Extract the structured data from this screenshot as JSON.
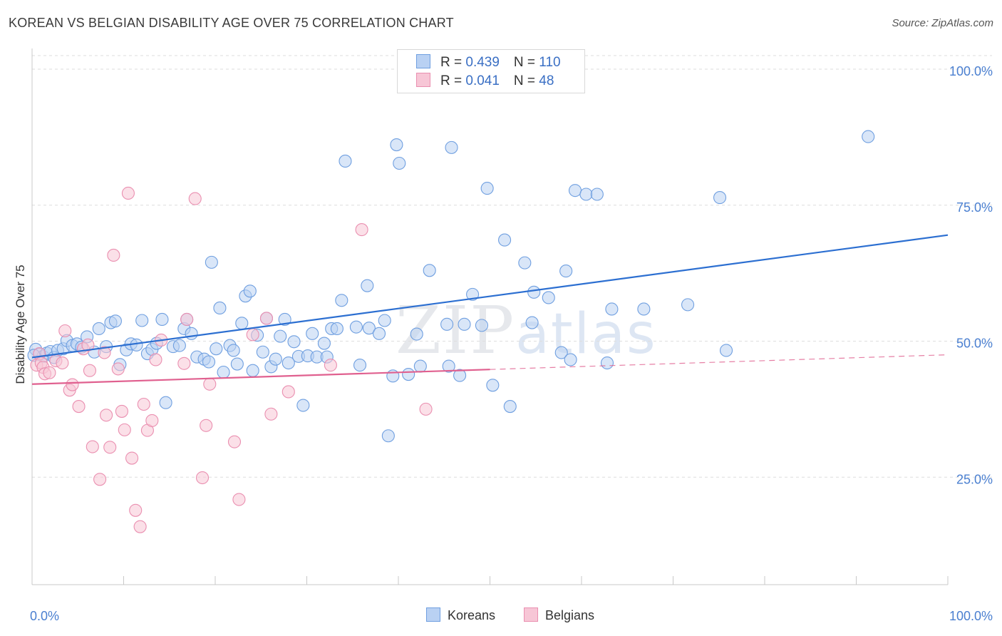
{
  "title": "KOREAN VS BELGIAN DISABILITY AGE OVER 75 CORRELATION CHART",
  "source": "Source: ZipAtlas.com",
  "watermark": {
    "zip": "ZIP",
    "atlas": "atlas"
  },
  "colors": {
    "korean_fill": "#b9d1f3",
    "korean_stroke": "#6f9fe0",
    "korean_line": "#2c6fd1",
    "belgian_fill": "#f7c6d6",
    "belgian_stroke": "#ea8fb0",
    "belgian_line": "#e0608f",
    "tick_label": "#4a7fd0",
    "grid": "#dedede"
  },
  "legend": {
    "korean": {
      "r_label": "R = ",
      "r_value": "0.439",
      "n_label": "N = ",
      "n_value": "110"
    },
    "belgian": {
      "r_label": "R = ",
      "r_value": "0.041",
      "n_label": "N = ",
      "n_value": "48"
    }
  },
  "bottom_legend": {
    "korean": "Koreans",
    "belgian": "Belgians"
  },
  "chart_data": {
    "type": "scatter",
    "title": "KOREAN VS BELGIAN DISABILITY AGE OVER 75 CORRELATION CHART",
    "xlabel": "",
    "ylabel": "Disability Age Over 75",
    "xlim": [
      0,
      100
    ],
    "ylim": [
      0,
      100
    ],
    "x_tick_labels": {
      "left": "0.0%",
      "right": "100.0%"
    },
    "y_ticks": [
      {
        "value": 100,
        "label": "100.0%"
      },
      {
        "value": 75,
        "label": "75.0%"
      },
      {
        "value": 50,
        "label": "50.0%"
      },
      {
        "value": 25,
        "label": "25.0%"
      }
    ],
    "grid": true,
    "legend_position": "top-center",
    "series": [
      {
        "name": "Koreans",
        "r": 0.439,
        "n": 110,
        "trend": {
          "x": [
            0,
            100
          ],
          "y": [
            47.0,
            69.5
          ],
          "dashed_from": null
        },
        "points": [
          [
            0.4,
            48.5
          ],
          [
            0.8,
            47.6
          ],
          [
            1.2,
            47.2
          ],
          [
            1.6,
            47.8
          ],
          [
            2.0,
            48.1
          ],
          [
            2.4,
            47.0
          ],
          [
            2.8,
            48.3
          ],
          [
            3.4,
            48.6
          ],
          [
            3.8,
            50.1
          ],
          [
            4.4,
            49.2
          ],
          [
            4.9,
            49.5
          ],
          [
            5.4,
            48.9
          ],
          [
            6.0,
            50.8
          ],
          [
            6.8,
            48.0
          ],
          [
            7.3,
            52.3
          ],
          [
            8.1,
            49.0
          ],
          [
            8.6,
            53.4
          ],
          [
            9.1,
            53.7
          ],
          [
            9.6,
            45.7
          ],
          [
            10.3,
            48.4
          ],
          [
            10.8,
            49.5
          ],
          [
            11.4,
            49.3
          ],
          [
            12.0,
            53.8
          ],
          [
            12.6,
            47.7
          ],
          [
            13.1,
            48.5
          ],
          [
            13.6,
            49.6
          ],
          [
            14.2,
            54.0
          ],
          [
            14.6,
            38.7
          ],
          [
            15.4,
            49.0
          ],
          [
            16.1,
            49.2
          ],
          [
            16.6,
            52.3
          ],
          [
            16.9,
            54.0
          ],
          [
            17.4,
            51.4
          ],
          [
            18.0,
            47.1
          ],
          [
            18.8,
            46.7
          ],
          [
            19.3,
            46.2
          ],
          [
            19.6,
            64.5
          ],
          [
            20.1,
            48.6
          ],
          [
            20.5,
            56.1
          ],
          [
            20.9,
            44.3
          ],
          [
            21.6,
            49.2
          ],
          [
            22.0,
            48.3
          ],
          [
            22.4,
            45.8
          ],
          [
            22.9,
            53.3
          ],
          [
            23.3,
            58.3
          ],
          [
            23.8,
            59.2
          ],
          [
            24.1,
            44.6
          ],
          [
            24.6,
            51.1
          ],
          [
            25.2,
            48.0
          ],
          [
            25.6,
            54.2
          ],
          [
            26.1,
            45.3
          ],
          [
            26.6,
            46.7
          ],
          [
            27.1,
            50.9
          ],
          [
            27.6,
            54.0
          ],
          [
            28.0,
            46.0
          ],
          [
            28.6,
            49.9
          ],
          [
            29.1,
            47.2
          ],
          [
            29.6,
            38.2
          ],
          [
            30.1,
            47.3
          ],
          [
            30.6,
            51.4
          ],
          [
            31.1,
            47.1
          ],
          [
            31.9,
            49.6
          ],
          [
            32.2,
            47.1
          ],
          [
            32.7,
            52.3
          ],
          [
            33.3,
            52.3
          ],
          [
            33.8,
            57.5
          ],
          [
            34.2,
            83.1
          ],
          [
            35.4,
            52.6
          ],
          [
            35.8,
            45.6
          ],
          [
            36.6,
            60.2
          ],
          [
            36.8,
            52.4
          ],
          [
            37.9,
            51.4
          ],
          [
            38.5,
            53.8
          ],
          [
            38.9,
            32.6
          ],
          [
            39.4,
            43.6
          ],
          [
            39.8,
            86.1
          ],
          [
            40.1,
            82.7
          ],
          [
            41.1,
            43.9
          ],
          [
            42.0,
            51.3
          ],
          [
            42.4,
            45.4
          ],
          [
            43.4,
            63.0
          ],
          [
            45.3,
            53.1
          ],
          [
            45.5,
            45.4
          ],
          [
            45.8,
            85.6
          ],
          [
            46.7,
            43.7
          ],
          [
            47.2,
            53.1
          ],
          [
            48.1,
            58.6
          ],
          [
            49.1,
            52.9
          ],
          [
            49.7,
            78.1
          ],
          [
            50.3,
            41.9
          ],
          [
            51.6,
            68.6
          ],
          [
            52.2,
            38.0
          ],
          [
            53.8,
            64.4
          ],
          [
            54.6,
            53.4
          ],
          [
            54.8,
            59.0
          ],
          [
            56.4,
            58.0
          ],
          [
            57.8,
            47.9
          ],
          [
            58.3,
            62.9
          ],
          [
            58.8,
            46.6
          ],
          [
            59.3,
            77.7
          ],
          [
            60.5,
            77.0
          ],
          [
            61.7,
            77.0
          ],
          [
            62.8,
            46.0
          ],
          [
            63.3,
            55.9
          ],
          [
            66.8,
            55.9
          ],
          [
            71.6,
            56.7
          ],
          [
            75.8,
            48.3
          ],
          [
            75.1,
            76.4
          ],
          [
            91.3,
            87.6
          ],
          [
            0.2,
            47.4
          ]
        ]
      },
      {
        "name": "Belgians",
        "r": 0.041,
        "n": 48,
        "trend": {
          "x": [
            0,
            100
          ],
          "y": [
            42.1,
            47.5
          ],
          "dashed_from": 50
        },
        "points": [
          [
            0.5,
            45.6
          ],
          [
            0.8,
            47.7
          ],
          [
            1.0,
            46.0
          ],
          [
            1.2,
            45.2
          ],
          [
            1.4,
            44.0
          ],
          [
            1.9,
            44.2
          ],
          [
            2.6,
            46.4
          ],
          [
            3.3,
            46.0
          ],
          [
            3.6,
            51.9
          ],
          [
            4.1,
            41.0
          ],
          [
            4.4,
            42.0
          ],
          [
            5.1,
            38.0
          ],
          [
            5.6,
            48.6
          ],
          [
            6.1,
            49.3
          ],
          [
            6.3,
            44.6
          ],
          [
            6.6,
            30.6
          ],
          [
            7.4,
            24.6
          ],
          [
            7.9,
            47.9
          ],
          [
            8.1,
            36.4
          ],
          [
            8.5,
            30.5
          ],
          [
            8.9,
            65.8
          ],
          [
            9.4,
            44.9
          ],
          [
            9.8,
            37.1
          ],
          [
            10.1,
            33.7
          ],
          [
            10.5,
            77.2
          ],
          [
            10.9,
            28.5
          ],
          [
            11.3,
            18.9
          ],
          [
            11.8,
            15.9
          ],
          [
            12.2,
            38.4
          ],
          [
            12.6,
            33.6
          ],
          [
            13.1,
            35.4
          ],
          [
            13.5,
            46.6
          ],
          [
            14.1,
            50.2
          ],
          [
            16.6,
            45.9
          ],
          [
            16.9,
            54.0
          ],
          [
            17.8,
            76.2
          ],
          [
            18.6,
            24.9
          ],
          [
            19.0,
            34.5
          ],
          [
            19.4,
            42.1
          ],
          [
            22.1,
            31.5
          ],
          [
            22.6,
            20.9
          ],
          [
            24.1,
            51.2
          ],
          [
            25.6,
            54.2
          ],
          [
            26.1,
            36.6
          ],
          [
            28.0,
            40.7
          ],
          [
            32.6,
            45.6
          ],
          [
            36.0,
            70.5
          ],
          [
            43.0,
            37.5
          ]
        ]
      }
    ]
  }
}
